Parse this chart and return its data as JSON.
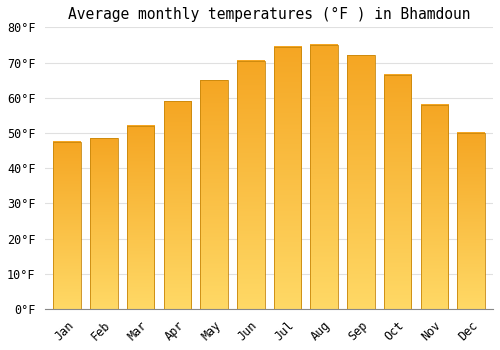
{
  "title": "Average monthly temperatures (°F ) in Bhamdoun",
  "months": [
    "Jan",
    "Feb",
    "Mar",
    "Apr",
    "May",
    "Jun",
    "Jul",
    "Aug",
    "Sep",
    "Oct",
    "Nov",
    "Dec"
  ],
  "values": [
    47.5,
    48.5,
    52,
    59,
    65,
    70.5,
    74.5,
    75,
    72,
    66.5,
    58,
    50
  ],
  "bar_color_bottom": "#F5A623",
  "bar_color_top": "#FFD966",
  "bar_edge_color": "#C8860A",
  "ylim": [
    0,
    80
  ],
  "yticks": [
    0,
    10,
    20,
    30,
    40,
    50,
    60,
    70,
    80
  ],
  "ytick_labels": [
    "0°F",
    "10°F",
    "20°F",
    "30°F",
    "40°F",
    "50°F",
    "60°F",
    "70°F",
    "80°F"
  ],
  "background_color": "#FFFFFF",
  "grid_color": "#E0E0E0",
  "title_fontsize": 10.5,
  "tick_fontsize": 8.5,
  "font_family": "monospace",
  "bar_width": 0.75
}
